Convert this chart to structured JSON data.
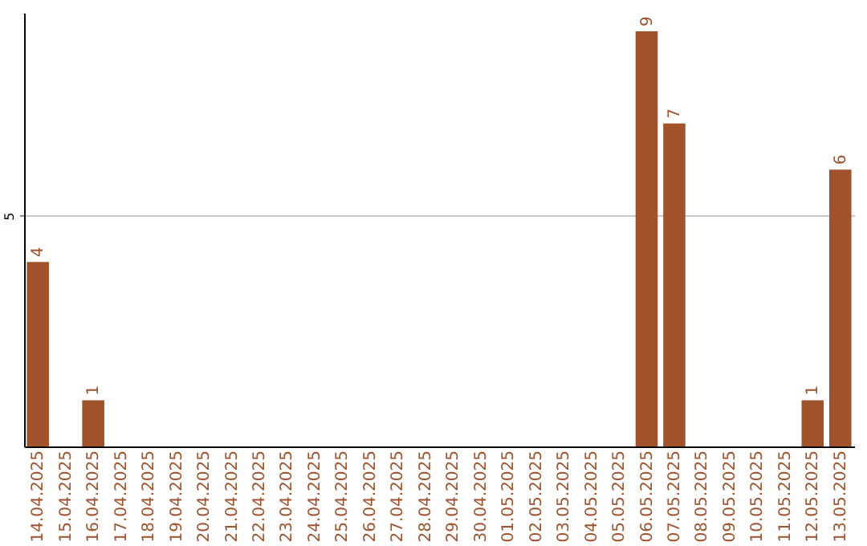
{
  "chart_data": {
    "type": "bar",
    "categories": [
      "14.04.2025",
      "15.04.2025",
      "16.04.2025",
      "17.04.2025",
      "18.04.2025",
      "19.04.2025",
      "20.04.2025",
      "21.04.2025",
      "22.04.2025",
      "23.04.2025",
      "24.04.2025",
      "25.04.2025",
      "26.04.2025",
      "27.04.2025",
      "28.04.2025",
      "29.04.2025",
      "30.04.2025",
      "01.05.2025",
      "02.05.2025",
      "03.05.2025",
      "04.05.2025",
      "05.05.2025",
      "06.05.2025",
      "07.05.2025",
      "08.05.2025",
      "09.05.2025",
      "10.05.2025",
      "11.05.2025",
      "12.05.2025",
      "13.05.2025"
    ],
    "values": [
      4,
      0,
      1,
      0,
      0,
      0,
      0,
      0,
      0,
      0,
      0,
      0,
      0,
      0,
      0,
      0,
      0,
      0,
      0,
      0,
      0,
      0,
      9,
      7,
      0,
      0,
      0,
      0,
      1,
      6
    ],
    "value_labels": [
      "4",
      null,
      "1",
      null,
      null,
      null,
      null,
      null,
      null,
      null,
      null,
      null,
      null,
      null,
      null,
      null,
      null,
      null,
      null,
      null,
      null,
      null,
      "9",
      "7",
      null,
      null,
      null,
      null,
      "1",
      "6"
    ],
    "color": "#a0522d",
    "ylim": [
      0,
      9.4
    ],
    "yticks": [
      5
    ],
    "grid": "y"
  }
}
